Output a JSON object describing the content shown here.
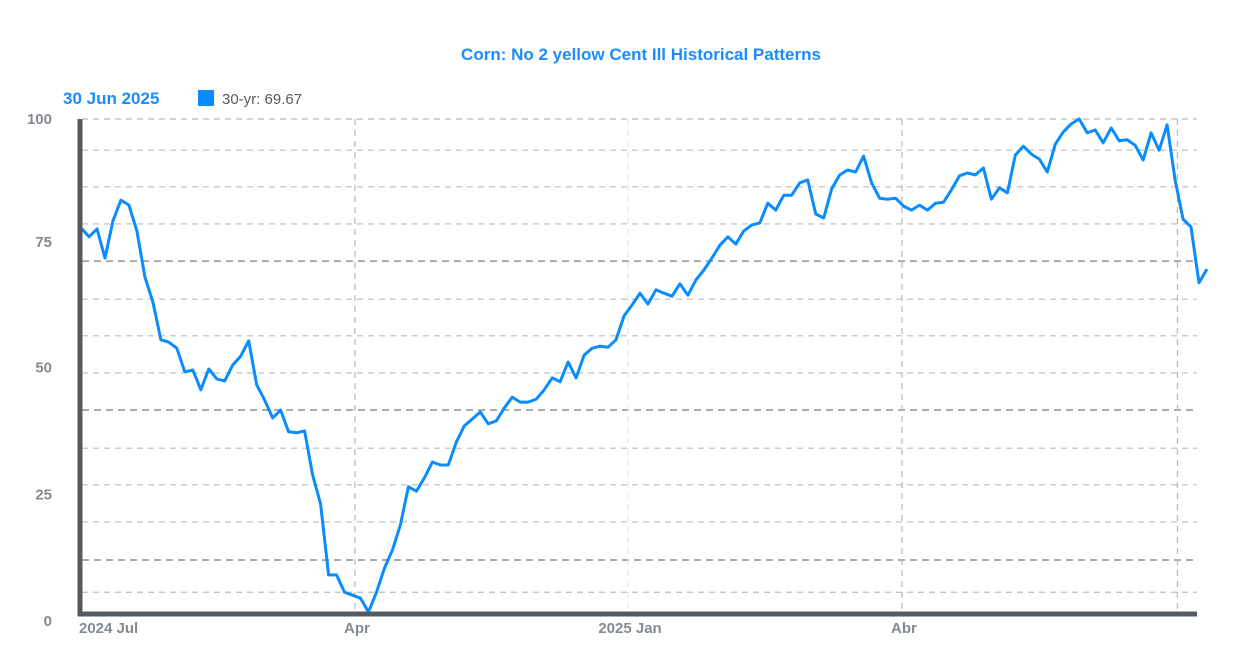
{
  "chart_data": {
    "type": "line",
    "title": "Corn: No 2 yellow Cent Ill Historical Patterns",
    "date_label": "30 Jun 2025",
    "legend": {
      "entries": [
        {
          "label": "30-yr: 69.67",
          "color": "#0a8cff"
        }
      ],
      "placement": "top-left"
    },
    "ylim": [
      0,
      100
    ],
    "y_ticks": [
      0,
      25,
      50,
      75,
      100
    ],
    "x_ticks": [
      {
        "label": "2024 Jul",
        "index": 0
      },
      {
        "label": "Apr",
        "index": 34.3
      },
      {
        "label": "2025 Jan",
        "index": 68.5
      },
      {
        "label": "Abr",
        "index": 102.8
      }
    ],
    "x_grid_extra_index": 137.3,
    "grid": true,
    "line_color": "#0a8cff",
    "axis_color": "#555a60",
    "series": [
      {
        "name": "30-yr",
        "values": [
          78.0,
          76.2,
          77.8,
          71.9,
          79.4,
          83.6,
          82.6,
          77.4,
          68.1,
          63.0,
          55.4,
          54.9,
          53.7,
          48.9,
          49.3,
          45.3,
          49.5,
          47.5,
          47.1,
          50.3,
          52.1,
          55.2,
          46.3,
          43.2,
          39.6,
          41.2,
          36.8,
          36.6,
          37.0,
          28.1,
          22.2,
          7.9,
          7.9,
          4.4,
          3.8,
          3.2,
          0.4,
          4.4,
          9.3,
          12.9,
          18.0,
          25.7,
          24.8,
          27.5,
          30.7,
          30.1,
          30.1,
          34.7,
          38.0,
          39.4,
          40.8,
          38.4,
          39.0,
          41.6,
          43.8,
          42.8,
          42.8,
          43.4,
          45.3,
          47.7,
          46.9,
          50.9,
          47.7,
          52.3,
          53.7,
          54.1,
          53.9,
          55.4,
          60.2,
          62.4,
          64.8,
          62.6,
          65.5,
          64.8,
          64.2,
          66.7,
          64.4,
          67.5,
          69.5,
          71.9,
          74.5,
          76.2,
          74.7,
          77.4,
          78.6,
          79.0,
          83.0,
          81.6,
          84.6,
          84.6,
          87.1,
          87.7,
          80.8,
          80.0,
          85.9,
          88.7,
          89.7,
          89.3,
          92.5,
          87.1,
          84.0,
          83.8,
          84.0,
          82.4,
          81.6,
          82.6,
          81.6,
          83.0,
          83.2,
          85.7,
          88.5,
          89.1,
          88.7,
          90.1,
          83.8,
          86.1,
          85.1,
          92.7,
          94.5,
          92.9,
          91.9,
          89.3,
          94.9,
          97.4,
          99.0,
          100.0,
          97.2,
          97.8,
          95.2,
          98.2,
          95.6,
          95.8,
          94.7,
          91.7,
          97.2,
          93.7,
          98.8,
          87.7,
          79.8,
          78.2,
          66.9,
          69.67
        ]
      }
    ]
  }
}
